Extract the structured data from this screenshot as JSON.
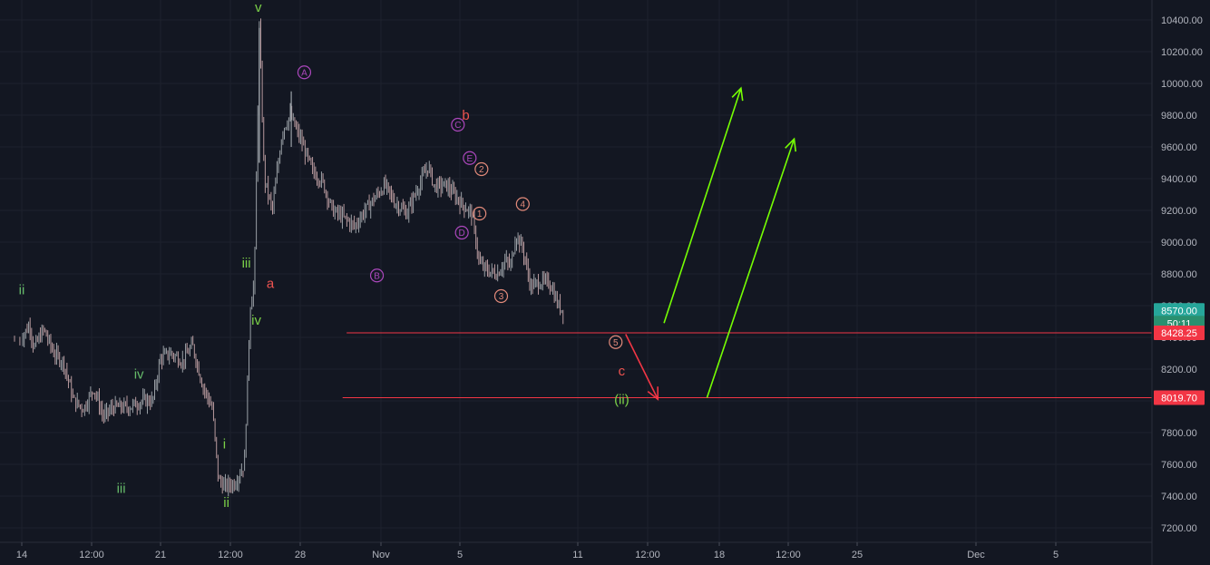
{
  "chart_data": {
    "type": "candlestick",
    "y_axis": {
      "range": [
        7130,
        10540
      ],
      "ticks": [
        "7200.00",
        "7400.00",
        "7600.00",
        "7800.00",
        "8000.00",
        "8200.00",
        "8400.00",
        "8600.00",
        "8800.00",
        "9000.00",
        "9200.00",
        "9400.00",
        "9600.00",
        "9800.00",
        "10000.00",
        "10200.00",
        "10400.00"
      ],
      "tick_values": [
        7200,
        7400,
        7600,
        7800,
        8000,
        8200,
        8400,
        8600,
        8800,
        9000,
        9200,
        9400,
        9600,
        9800,
        10000,
        10200,
        10400
      ]
    },
    "x_axis": {
      "range": [
        13.9,
        41.25
      ],
      "ticks": [
        {
          "label": "14",
          "t": 14.0
        },
        {
          "label": "12:00",
          "t": 17.5
        },
        {
          "label": "21",
          "t": 21.0
        },
        {
          "label": "12:00",
          "t": 24.5
        },
        {
          "label": "28",
          "t": 28.0
        },
        {
          "label": "Nov",
          "t": 32.0
        },
        {
          "label": "5",
          "t": 36.0
        },
        {
          "label": "11",
          "t": 42.0
        },
        {
          "label": "12:00",
          "t": 45.5
        },
        {
          "label": "18",
          "t": 49.0
        },
        {
          "label": "12:00",
          "t": 52.5
        },
        {
          "label": "25",
          "t": 56.0
        },
        {
          "label": "Dec",
          "t": 62.0
        },
        {
          "label": "5",
          "t": 66.0
        }
      ],
      "unit": "days from Oct 1 (compressed scale)"
    },
    "price_path": [
      [
        13.9,
        8380
      ],
      [
        14.4,
        8480
      ],
      [
        14.6,
        8330
      ],
      [
        15.1,
        8450
      ],
      [
        15.6,
        8300
      ],
      [
        16.1,
        8240
      ],
      [
        16.6,
        8000
      ],
      [
        17.1,
        7950
      ],
      [
        17.6,
        8080
      ],
      [
        18.1,
        7900
      ],
      [
        18.6,
        7960
      ],
      [
        19.4,
        7960
      ],
      [
        20.1,
        8000
      ],
      [
        20.6,
        8000
      ],
      [
        21.0,
        8270
      ],
      [
        21.5,
        8300
      ],
      [
        22.1,
        8250
      ],
      [
        22.6,
        8350
      ],
      [
        23.1,
        8100
      ],
      [
        23.6,
        7950
      ],
      [
        23.9,
        7500
      ],
      [
        24.2,
        7460
      ],
      [
        24.7,
        7480
      ],
      [
        25.2,
        7600
      ],
      [
        25.5,
        8600
      ],
      [
        25.7,
        8750
      ],
      [
        25.95,
        10350
      ],
      [
        26.2,
        9400
      ],
      [
        26.6,
        9200
      ],
      [
        27.1,
        9700
      ],
      [
        27.5,
        9800
      ],
      [
        28.0,
        9650
      ],
      [
        28.6,
        9450
      ],
      [
        29.1,
        9380
      ],
      [
        29.6,
        9200
      ],
      [
        30.2,
        9150
      ],
      [
        30.7,
        9100
      ],
      [
        31.2,
        9200
      ],
      [
        31.7,
        9280
      ],
      [
        32.2,
        9360
      ],
      [
        32.7,
        9250
      ],
      [
        33.3,
        9180
      ],
      [
        33.9,
        9350
      ],
      [
        34.4,
        9480
      ],
      [
        34.7,
        9350
      ],
      [
        35.3,
        9360
      ],
      [
        35.7,
        9300
      ],
      [
        36.1,
        9240
      ],
      [
        36.6,
        9180
      ],
      [
        37.0,
        8860
      ],
      [
        37.4,
        8820
      ],
      [
        37.9,
        8800
      ],
      [
        38.3,
        8880
      ],
      [
        38.6,
        8850
      ],
      [
        38.85,
        9050
      ],
      [
        39.2,
        8960
      ],
      [
        39.6,
        8720
      ],
      [
        40.1,
        8750
      ],
      [
        40.6,
        8740
      ],
      [
        41.0,
        8600
      ],
      [
        41.25,
        8570
      ]
    ],
    "waves": [
      {
        "label": "ii",
        "color": "#66bb6a",
        "t": 14.0,
        "y": 8700
      },
      {
        "label": "iv",
        "color": "#66bb6a",
        "t": 19.9,
        "y": 8170
      },
      {
        "label": "iii",
        "color": "#66bb6a",
        "t": 19.0,
        "y": 7450
      },
      {
        "label": "i",
        "color": "#7bd148",
        "t": 24.2,
        "y": 7730
      },
      {
        "label": "ii",
        "color": "#7bd148",
        "t": 24.3,
        "y": 7360
      },
      {
        "label": "v",
        "color": "#7bd148",
        "t": 25.9,
        "y": 10480
      },
      {
        "label": "iii",
        "color": "#7bd148",
        "t": 25.3,
        "y": 8870
      },
      {
        "label": "iv",
        "color": "#7bd148",
        "t": 25.8,
        "y": 8510
      },
      {
        "label": "a",
        "color": "#ef5350",
        "t": 26.5,
        "y": 8740
      },
      {
        "label": "b",
        "color": "#ef5350",
        "t": 36.3,
        "y": 9800
      },
      {
        "label": "c",
        "color": "#ef5350",
        "t": 44.2,
        "y": 8190
      },
      {
        "label": "(ii)",
        "color": "#7bd148",
        "t": 44.2,
        "y": 8010
      }
    ],
    "circle_markers": [
      {
        "label": "A",
        "color": "#ab47bc",
        "t": 28.2,
        "y": 10070
      },
      {
        "label": "B",
        "color": "#ab47bc",
        "t": 31.8,
        "y": 8790
      },
      {
        "label": "C",
        "color": "#ab47bc",
        "t": 35.9,
        "y": 9740
      },
      {
        "label": "D",
        "color": "#ab47bc",
        "t": 36.1,
        "y": 9060
      },
      {
        "label": "E",
        "color": "#ab47bc",
        "t": 36.5,
        "y": 9530
      },
      {
        "label": "1",
        "color": "#e28a7a",
        "t": 37.0,
        "y": 9180
      },
      {
        "label": "2",
        "color": "#e28a7a",
        "t": 37.1,
        "y": 9460
      },
      {
        "label": "3",
        "color": "#e28a7a",
        "t": 38.1,
        "y": 8660
      },
      {
        "label": "4",
        "color": "#e28a7a",
        "t": 39.2,
        "y": 9240
      },
      {
        "label": "5",
        "color": "#e28a7a",
        "t": 43.9,
        "y": 8370
      }
    ],
    "horizontal_lines": [
      {
        "y": 8428.25,
        "color": "#f23645",
        "t_start": 30.3
      },
      {
        "y": 8019.7,
        "color": "#f23645",
        "t_start": 30.1
      }
    ],
    "arrows": [
      {
        "color": "#f23645",
        "from": {
          "t": 44.4,
          "y": 8420
        },
        "to": {
          "t": 46.0,
          "y": 8010
        }
      },
      {
        "color": "#76ff03",
        "from": {
          "t": 46.3,
          "y": 8490
        },
        "to": {
          "t": 50.1,
          "y": 9970
        }
      },
      {
        "color": "#76ff03",
        "from": {
          "t": 48.4,
          "y": 8020
        },
        "to": {
          "t": 52.8,
          "y": 9650
        }
      }
    ],
    "price_badges": [
      {
        "text": "8570.00",
        "bg": "#26a69a",
        "y": 8570
      },
      {
        "text": "50:11",
        "bg": "#2a8f6f",
        "y": 8490
      },
      {
        "text": "8428.25",
        "bg": "#f23645",
        "y": 8428.25
      },
      {
        "text": "8019.70",
        "bg": "#f23645",
        "y": 8019.7
      }
    ]
  }
}
